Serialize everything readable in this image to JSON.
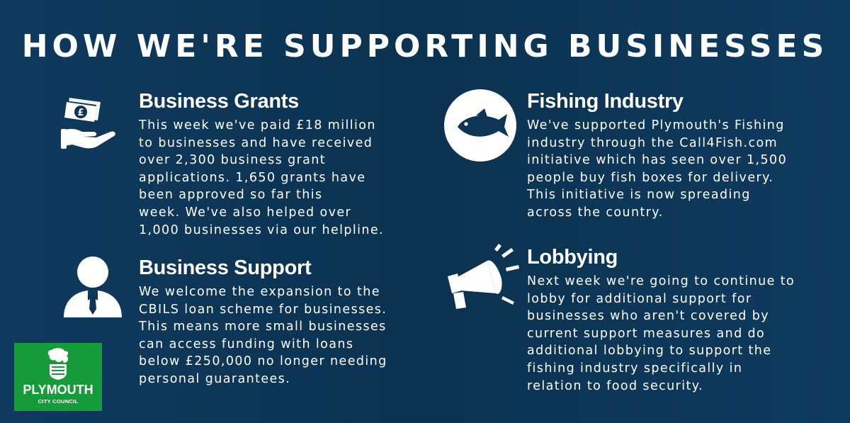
{
  "title": "HOW WE'RE SUPPORTING BUSINESSES",
  "sections": [
    {
      "heading": "Business Grants",
      "body": "This week we've paid £18 million\nto businesses and have received\nover 2,300 business grant\napplications. 1,650 grants have\nbeen approved so far this\nweek. We've also helped over\n1,000 businesses via our helpline.",
      "icon": "money-hand-icon"
    },
    {
      "heading": "Fishing Industry",
      "body": "We've supported Plymouth's Fishing\nindustry through the Call4Fish.com\ninitiative which has seen over 1,500\npeople buy fish boxes for delivery.\nThis initiative is now spreading\nacross the country.",
      "icon": "fish-icon"
    },
    {
      "heading": "Business Support",
      "body": "We welcome the expansion to the\nCBILS loan scheme for businesses.\nThis means more small businesses\ncan access funding with loans\nbelow £250,000 no longer needing\npersonal guarantees.",
      "icon": "businessperson-icon"
    },
    {
      "heading": "Lobbying",
      "body": "Next week we're going to continue to\nlobby for additional support for\nbusinesses who aren't covered by\ncurrent support measures and do\nadditional lobbying to support the\nfishing industry specifically in\nrelation to food security.",
      "icon": "megaphone-icon"
    }
  ],
  "logo": {
    "name": "PLYMOUTH",
    "subtitle": "CITY COUNCIL",
    "icon": "lion-crest-icon",
    "color": "#169b3a"
  },
  "colors": {
    "background": "#0d3656",
    "text": "#ffffff"
  }
}
